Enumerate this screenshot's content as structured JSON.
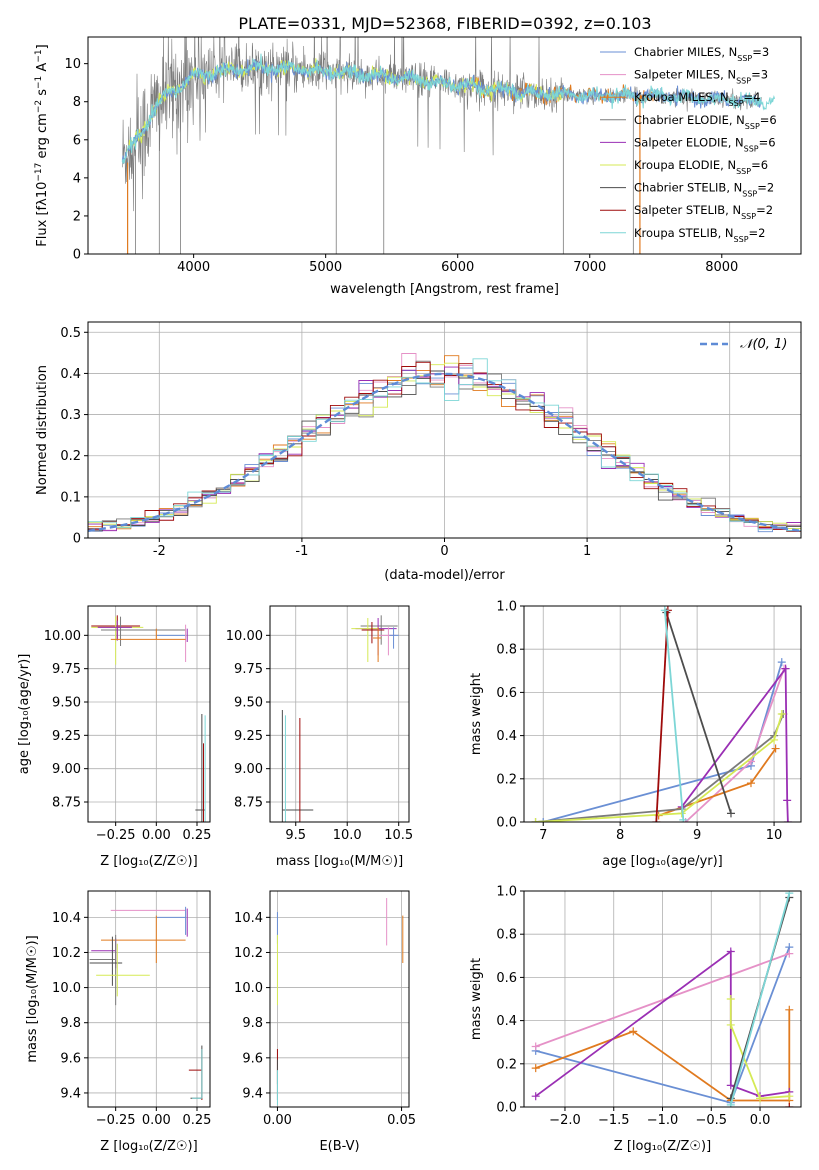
{
  "title": "PLATE=0331, MJD=52368, FIBERID=0392, z=0.103",
  "colors": {
    "chabrier_miles": "#6a8fd4",
    "salpeter_miles": "#e591c7",
    "kroupa_miles": "#e07a1f",
    "chabrier_elodie": "#7b7b7b",
    "salpeter_elodie": "#9a2fb4",
    "kroupa_elodie": "#d5ea55",
    "chabrier_stelib": "#4d4d4d",
    "salpeter_stelib": "#9e0a0a",
    "kroupa_stelib": "#7dd6d6",
    "gauss": "#5e8bd6"
  },
  "chart_data": [
    {
      "id": "spectrum",
      "type": "line",
      "xlabel": "wavelength [Angstrom, rest frame]",
      "ylabel": "Flux [f_λ10^-17 erg cm^-2 s^-1 A^-1]",
      "xlim": [
        3200,
        8600
      ],
      "ylim": [
        0,
        11.4
      ],
      "xticks": [
        4000,
        5000,
        6000,
        7000,
        8000
      ],
      "yticks": [
        0,
        2,
        4,
        6,
        8,
        10
      ],
      "grid": false,
      "legend_position": "right",
      "legend": [
        {
          "name": "Chabrier MILES, N",
          "sub": "SSP",
          "suffix": "=3",
          "color": "#6a8fd4"
        },
        {
          "name": "Salpeter MILES, N",
          "sub": "SSP",
          "suffix": "=3",
          "color": "#e591c7"
        },
        {
          "name": "Kroupa MILES, N",
          "sub": "SSP",
          "suffix": "=4",
          "color": "#e07a1f"
        },
        {
          "name": "Chabrier ELODIE, N",
          "sub": "SSP",
          "suffix": "=6",
          "color": "#7b7b7b"
        },
        {
          "name": "Salpeter ELODIE, N",
          "sub": "SSP",
          "suffix": "=6",
          "color": "#9a2fb4"
        },
        {
          "name": "Kroupa ELODIE, N",
          "sub": "SSP",
          "suffix": "=6",
          "color": "#d5ea55"
        },
        {
          "name": "Chabrier STELIB, N",
          "sub": "SSP",
          "suffix": "=2",
          "color": "#4d4d4d"
        },
        {
          "name": "Salpeter STELIB, N",
          "sub": "SSP",
          "suffix": "=2",
          "color": "#9e0a0a"
        },
        {
          "name": "Kroupa STELIB, N",
          "sub": "SSP",
          "suffix": "=2",
          "color": "#7dd6d6"
        }
      ],
      "continuum": [
        [
          3460,
          5.0
        ],
        [
          3500,
          5.4
        ],
        [
          3600,
          6.2
        ],
        [
          3700,
          7.6
        ],
        [
          3800,
          8.4
        ],
        [
          3900,
          8.8
        ],
        [
          4000,
          9.4
        ],
        [
          4200,
          9.6
        ],
        [
          4500,
          9.8
        ],
        [
          5000,
          9.6
        ],
        [
          5500,
          9.3
        ],
        [
          6000,
          8.9
        ],
        [
          6500,
          8.5
        ],
        [
          7000,
          8.3
        ],
        [
          7500,
          8.3
        ],
        [
          8000,
          8.1
        ],
        [
          8300,
          8.0
        ]
      ],
      "noise_range": [
        3460,
        6800
      ]
    },
    {
      "id": "residuals",
      "type": "bar",
      "xlabel": "(data-model)/error",
      "ylabel": "Normed distribution",
      "xlim": [
        -2.5,
        2.5
      ],
      "ylim": [
        0,
        0.525
      ],
      "xticks": [
        -2,
        -1,
        0,
        1,
        2
      ],
      "yticks": [
        0.0,
        0.1,
        0.2,
        0.3,
        0.4,
        0.5
      ],
      "grid": true,
      "legend_position": "top-right",
      "legend": [
        {
          "name": "𝒩(0, 1)",
          "color": "#5e8bd6",
          "style": "dashed"
        }
      ],
      "bin_width": 0.1,
      "series": "gaussian-like histograms for 9 fits"
    },
    {
      "id": "age_vs_Z",
      "type": "scatter",
      "xlabel": "Z [log₁₀(Z/Z☉)]",
      "ylabel": "age  [log₁₀(age/yr)]",
      "xlim": [
        -0.42,
        0.33
      ],
      "ylim": [
        8.6,
        10.22
      ],
      "xticks": [
        -0.25,
        0.0,
        0.25
      ],
      "xticklabels": [
        "−0.25",
        "0.00",
        "0.25"
      ],
      "yticks": [
        8.75,
        9.0,
        9.25,
        9.5,
        9.75,
        10.0
      ],
      "yticklabels": [
        "8.75",
        "9.00",
        "9.25",
        "9.50",
        "9.75",
        "10.00"
      ],
      "grid": true
    },
    {
      "id": "age_vs_mass",
      "type": "scatter",
      "xlabel": "mass [log₁₀(M/M☉)]",
      "ylabel": "",
      "xlim": [
        9.25,
        10.6
      ],
      "ylim": [
        8.6,
        10.22
      ],
      "xticks": [
        9.5,
        10.0,
        10.5
      ],
      "xticklabels": [
        "9.5",
        "10.0",
        "10.5"
      ],
      "yticks": [
        8.75,
        9.0,
        9.25,
        9.5,
        9.75,
        10.0
      ],
      "yticklabels": [
        "8.75",
        "9.00",
        "9.25",
        "9.50",
        "9.75",
        "10.00"
      ],
      "grid": true
    },
    {
      "id": "weight_vs_age",
      "type": "line",
      "xlabel": "age  [log₁₀(age/yr)]",
      "ylabel": "mass weight",
      "xlim": [
        6.75,
        10.35
      ],
      "ylim": [
        0,
        1.0
      ],
      "xticks": [
        7,
        8,
        9,
        10
      ],
      "yticks": [
        0.0,
        0.2,
        0.4,
        0.6,
        0.8,
        1.0
      ],
      "yticklabels": [
        "0.0",
        "0.2",
        "0.4",
        "0.6",
        "0.8",
        "1.0"
      ],
      "grid": true
    },
    {
      "id": "mass_vs_Z",
      "type": "scatter",
      "xlabel": "Z [log₁₀(Z/Z☉)]",
      "ylabel": "mass [log₁₀(M/M☉)]",
      "xlim": [
        -0.42,
        0.33
      ],
      "ylim": [
        9.32,
        10.55
      ],
      "xticks": [
        -0.25,
        0.0,
        0.25
      ],
      "xticklabels": [
        "−0.25",
        "0.00",
        "0.25"
      ],
      "yticks": [
        9.4,
        9.6,
        9.8,
        10.0,
        10.2,
        10.4
      ],
      "yticklabels": [
        "9.4",
        "9.6",
        "9.8",
        "10.0",
        "10.2",
        "10.4"
      ],
      "grid": true
    },
    {
      "id": "mass_vs_EBV",
      "type": "scatter",
      "xlabel": "E(B-V)",
      "ylabel": "",
      "xlim": [
        -0.003,
        0.053
      ],
      "ylim": [
        9.32,
        10.55
      ],
      "xticks": [
        0.0,
        0.05
      ],
      "xticklabels": [
        "0.00",
        "0.05"
      ],
      "yticks": [
        9.4,
        9.6,
        9.8,
        10.0,
        10.2,
        10.4
      ],
      "yticklabels": [
        "9.4",
        "9.6",
        "9.8",
        "10.0",
        "10.2",
        "10.4"
      ],
      "grid": true
    },
    {
      "id": "weight_vs_Z",
      "type": "line",
      "xlabel": "Z [log₁₀(Z/Z☉)]",
      "ylabel": "mass weight",
      "xlim": [
        -2.42,
        0.42
      ],
      "ylim": [
        0,
        1.0
      ],
      "xticks": [
        -2.0,
        -1.5,
        -1.0,
        -0.5,
        0.0
      ],
      "xticklabels": [
        "−2.0",
        "−1.5",
        "−1.0",
        "−0.5",
        "0.0"
      ],
      "yticks": [
        0.0,
        0.2,
        0.4,
        0.6,
        0.8,
        1.0
      ],
      "yticklabels": [
        "0.0",
        "0.2",
        "0.4",
        "0.6",
        "0.8",
        "1.0"
      ],
      "grid": true
    }
  ]
}
